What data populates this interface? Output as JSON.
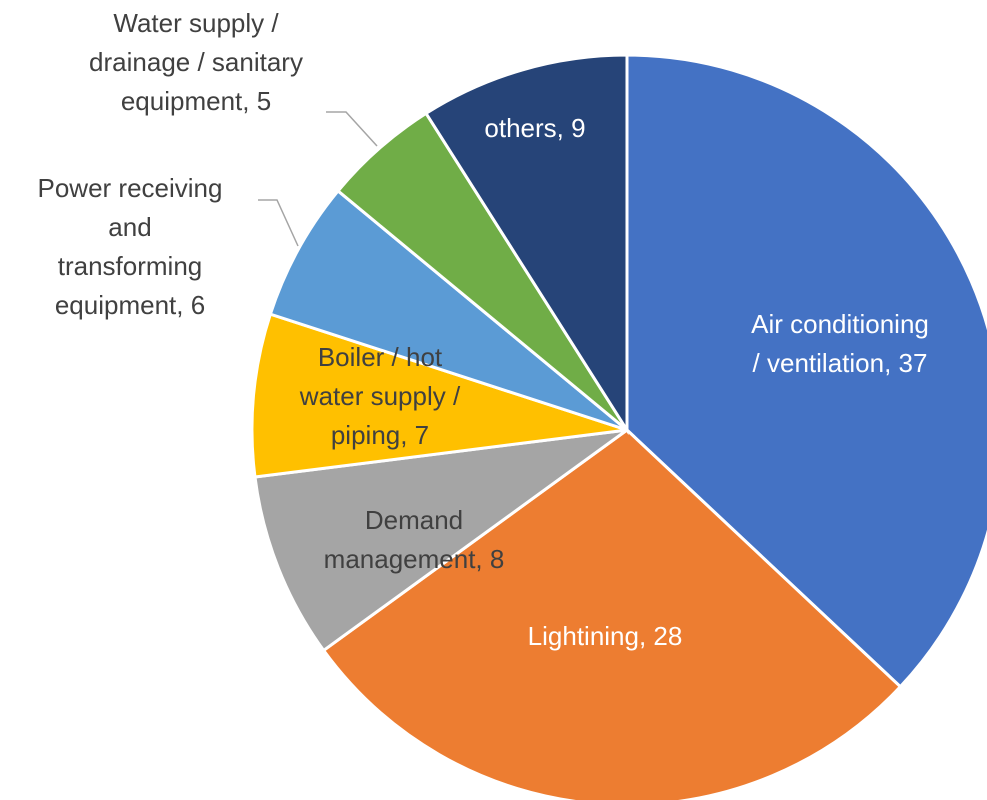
{
  "chart_data": {
    "type": "pie",
    "categories": [
      "Air conditioning / ventilation",
      "Lightining",
      "Demand management",
      "Boiler / hot water supply / piping",
      "Power receiving and transforming equipment",
      "Water supply / drainage / sanitary equipment",
      "others"
    ],
    "values": [
      37,
      28,
      8,
      7,
      6,
      5,
      9
    ],
    "value_labels": [
      "Air conditioning / ventilation, 37",
      "Lightining, 28",
      "Demand management, 8",
      "Boiler / hot water supply / piping, 7",
      "Power receiving and transforming equipment, 6",
      "Water supply / drainage / sanitary equipment, 5",
      "others, 9"
    ],
    "colors": [
      "#4472c4",
      "#ed7d31",
      "#a5a5a5",
      "#ffc000",
      "#5b9bd5",
      "#70ad47",
      "#264478"
    ]
  }
}
